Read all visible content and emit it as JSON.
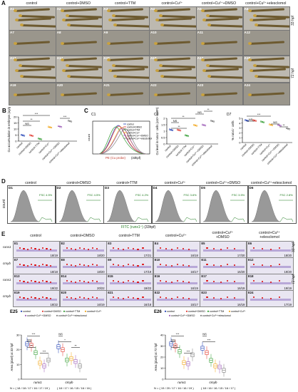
{
  "panelA": {
    "label": "A",
    "headers": [
      "control",
      "control+DMSO",
      "control+TTM",
      "control+Cu²⁺",
      "control+Cu²⁺+DMSO",
      "control+Cu²⁺+elesclomol"
    ],
    "rows": [
      [
        "A1",
        "A2",
        "A3",
        "A4",
        "A5",
        "A6"
      ],
      [
        "A7",
        "A8",
        "A9",
        "A10",
        "A11",
        "A12"
      ],
      [
        "A13",
        "A14",
        "A15",
        "A16",
        "A17",
        "A18"
      ],
      [
        "A19",
        "A20",
        "A21",
        "A22",
        "A23",
        "A24"
      ]
    ],
    "timepoints": [
      "33 hpf",
      "72 hpf"
    ]
  },
  "panelB": {
    "label": "B",
    "ylabel": "Cu accumulation in embryos (ug/g)",
    "categories": [
      "control",
      "control+DMSO",
      "control+TTM",
      "control+Cu²⁺",
      "control+Cu²⁺+DMSO",
      "control+Cu²⁺+elesclomol"
    ],
    "sig": [
      "***",
      "NS",
      "**",
      "***"
    ]
  },
  "panelC": {
    "label": "C",
    "sub1": "C1",
    "sub2": "C2",
    "legend": [
      "control",
      "control+DMSO",
      "control+TTM",
      "control+Cu²⁺",
      "control+Cu²⁺+DMSO",
      "control+Cu²⁺+elesclomol"
    ],
    "xlabel": "PE (Cu probe)",
    "xunit": "(33hpf)",
    "c2_ylabel": "Cu level in runx1⁺ cells (x10⁴ GMFI)",
    "sig": [
      "NS",
      "**",
      "**",
      "NS",
      "**"
    ]
  },
  "panelD7": {
    "label": "D7",
    "ylabel": "% runx1⁺ cells",
    "sig": [
      "***",
      "NS",
      "NS",
      "**"
    ]
  },
  "panelD": {
    "label": "D",
    "subs": [
      "D1",
      "D2",
      "D3",
      "D4",
      "D5",
      "D6"
    ],
    "headers": [
      "control",
      "control+DMSO",
      "control+TTM",
      "control+Cu²⁺",
      "control+Cu²⁺+DMSO",
      "control+Cu²⁺+elesclomol"
    ],
    "pcts": [
      "FSC 4.5%",
      "FSC 4.5%",
      "FSC 4.2%",
      "FSC 3.6%",
      "FSC 3.5%",
      "FSC 2.8%"
    ],
    "ylabel": "count",
    "xlabel": "FITC (runx1⁺)",
    "xunit": "(33hpf)"
  },
  "panelE": {
    "label": "E",
    "headers": [
      "control",
      "control+DMSO",
      "control+TTM",
      "control+Cu²⁺",
      "control+Cu²⁺\n+DMSO",
      "control+Cu²⁺\n+elesclomol"
    ],
    "genes": [
      "runx1",
      "cmyb",
      "runx1",
      "cmyb"
    ],
    "timepoints": [
      "33 hpf",
      "72 hpf"
    ],
    "rows": [
      [
        [
          "E1",
          "18/19"
        ],
        [
          "E2",
          "18/20"
        ],
        [
          "E3",
          "17/21"
        ],
        [
          "E4",
          "16/18"
        ],
        [
          "E5",
          "17/20"
        ],
        [
          "E6",
          "18/20"
        ]
      ],
      [
        [
          "E7",
          "18/18"
        ],
        [
          "E8",
          "18/20"
        ],
        [
          "E9",
          "17/19"
        ],
        [
          "E10",
          "16/17"
        ],
        [
          "E11",
          "16/20"
        ],
        [
          "E12",
          "19/20"
        ]
      ],
      [
        [
          "E13",
          "19/22"
        ],
        [
          "E14",
          "20/22"
        ],
        [
          "E15",
          "19/22"
        ],
        [
          "E16",
          "16/19"
        ],
        [
          "E17",
          "16/19"
        ],
        [
          "E18",
          "19/19"
        ]
      ],
      [
        [
          "E19",
          "18/22"
        ],
        [
          "E20",
          "16/19"
        ],
        [
          "E21",
          "16/18"
        ],
        [
          "E22",
          "15/17"
        ],
        [
          "E23",
          "16/19"
        ],
        [
          "E24",
          "17/19"
        ]
      ]
    ]
  },
  "panelE25": {
    "label": "E25",
    "legend": [
      "control",
      "control+DMSO",
      "control+TTM",
      "control+Cu²⁺",
      "control+Cu²⁺+DMSO",
      "control+Cu²⁺+elesclomol"
    ],
    "ylabel": "Area (pixel) at 33 hpf",
    "groups": [
      "runx1",
      "cmyb"
    ],
    "n_text": "N = ( 18 / 18 / 17 / 16 / 17 / 19 )",
    "n_text2": "( 18 / 17 / 16 / 15 / 16 / 16 )",
    "sig": [
      "***",
      "NS",
      "**",
      "***",
      "NS",
      "*",
      "**"
    ]
  },
  "panelE26": {
    "label": "E26",
    "ylabel": "Area (pixel) at 72 hpf",
    "groups": [
      "runx1",
      "cmyb"
    ],
    "n_text": "N = ( 19 / 20 / 17 / 16 / 16 / 19 )",
    "n_text2": "( 18 / 16 / 16 / 15 / 16 / 17 )",
    "sig": [
      "***",
      "NS",
      "**",
      "***",
      "NS",
      "***"
    ]
  },
  "colors": {
    "c0": "#1f3fb5",
    "c1": "#e0342a",
    "c2": "#2e9b2e",
    "c3": "#f2a516",
    "c4": "#9b59b6",
    "c5": "#7a7a7a"
  }
}
